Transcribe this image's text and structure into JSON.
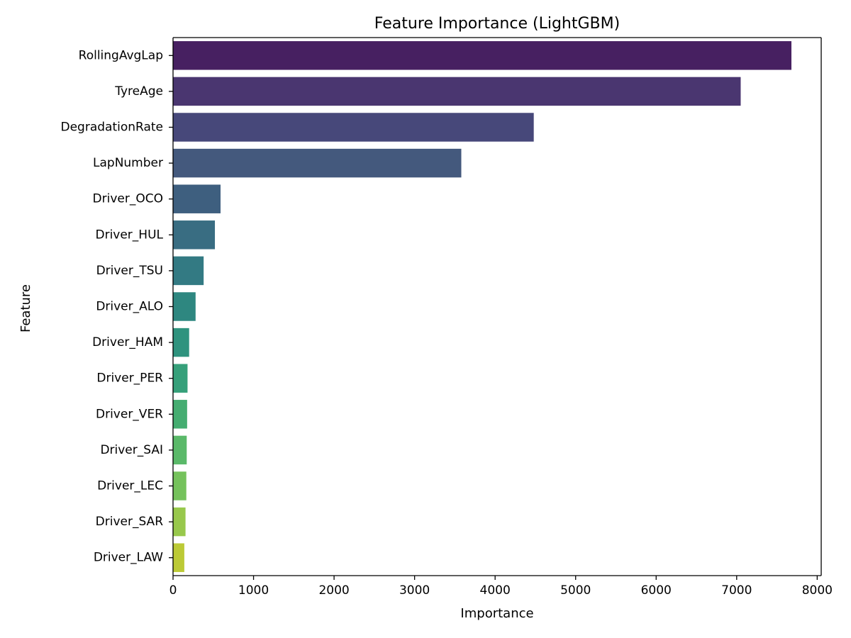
{
  "chart_data": {
    "type": "bar",
    "orientation": "horizontal",
    "title": "Feature Importance (LightGBM)",
    "xlabel": "Importance",
    "ylabel": "Feature",
    "xlim": [
      0,
      8050
    ],
    "xticks": [
      0,
      1000,
      2000,
      3000,
      4000,
      5000,
      6000,
      7000,
      8000
    ],
    "grid": false,
    "palette": "viridis",
    "categories": [
      "RollingAvgLap",
      "TyreAge",
      "DegradationRate",
      "LapNumber",
      "Driver_OCO",
      "Driver_HUL",
      "Driver_TSU",
      "Driver_ALO",
      "Driver_HAM",
      "Driver_PER",
      "Driver_VER",
      "Driver_SAI",
      "Driver_LEC",
      "Driver_SAR",
      "Driver_LAW"
    ],
    "values": [
      7680,
      7050,
      4480,
      3580,
      590,
      520,
      380,
      280,
      200,
      180,
      175,
      170,
      165,
      155,
      140
    ],
    "colors": [
      "#472061",
      "#4a3670",
      "#47487a",
      "#44597d",
      "#3e5f7f",
      "#396d82",
      "#337a83",
      "#2e8780",
      "#2f937e",
      "#36a07a",
      "#45ad71",
      "#5ab969",
      "#75c25c",
      "#98c84c",
      "#bcca36"
    ]
  }
}
